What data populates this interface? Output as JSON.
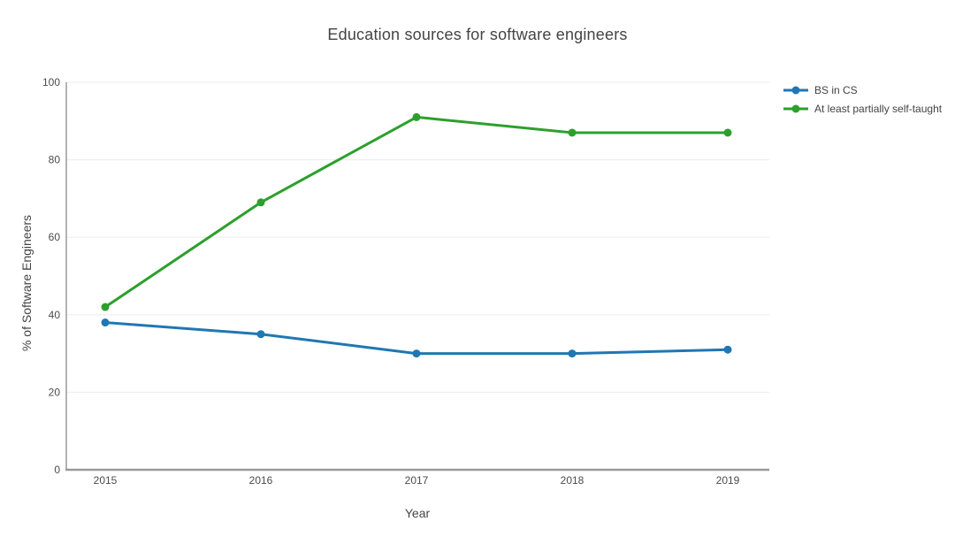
{
  "title": "Education sources for software engineers",
  "chart_data": {
    "type": "line",
    "x": [
      2015,
      2016,
      2017,
      2018,
      2019
    ],
    "categories": [
      "2015",
      "2016",
      "2017",
      "2018",
      "2019"
    ],
    "series": [
      {
        "name": "BS in CS",
        "values": [
          38,
          35,
          30,
          30,
          31
        ],
        "color": "#1f77b4"
      },
      {
        "name": "At least partially self-taught",
        "values": [
          42,
          69,
          91,
          87,
          87
        ],
        "color": "#2ca02c"
      }
    ],
    "xlabel": "Year",
    "ylabel": "% of Software Engineers",
    "ylim": [
      0,
      100
    ],
    "yticks": [
      0,
      20,
      40,
      60,
      80,
      100
    ],
    "grid": "horizontal",
    "legend_position": "top-right",
    "marker": "circle",
    "line_width": 3
  },
  "colors": {
    "background": "#ffffff",
    "title_text": "#444444",
    "axis_line": "#999999",
    "grid_line": "#ececec",
    "tick_text": "#4c4c4c",
    "legend_text": "#444444"
  }
}
